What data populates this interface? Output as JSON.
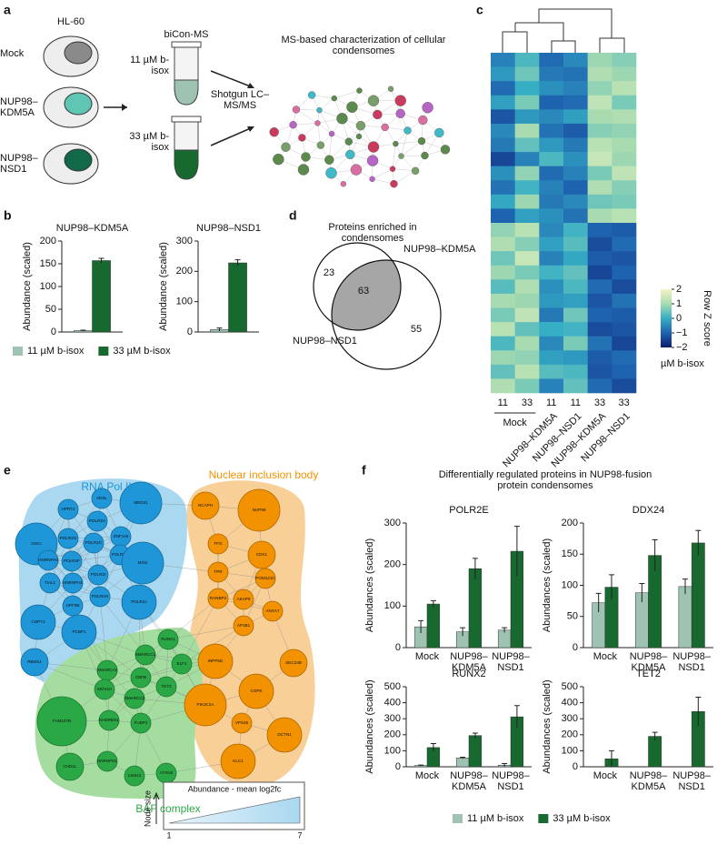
{
  "panel_labels": [
    "a",
    "b",
    "c",
    "d",
    "e",
    "f"
  ],
  "schematic": {
    "cell_line": "HL-60",
    "conditions": [
      "Mock",
      "NUP98–KDM5A",
      "NUP98–NSD1"
    ],
    "method": "biCon-MS",
    "concentrations": [
      "11 µM b-isox",
      "33 µM b-isox"
    ],
    "analysis": "Shotgun LC–MS/MS",
    "result": "MS-based characterization of cellular condensomes"
  },
  "chart_data": [
    {
      "type": "bar",
      "title": "NUP98–KDM5A",
      "y_label": "Abundance (scaled)",
      "categories": [
        null
      ],
      "series": [
        {
          "name": "11 µM b-isox",
          "color": "#9fc3b3",
          "values": [
            3
          ],
          "errors": [
            1
          ]
        },
        {
          "name": "33 µM b-isox",
          "color": "#17692f",
          "values": [
            157
          ],
          "errors": [
            5
          ]
        }
      ],
      "ylim": [
        0,
        200
      ],
      "yticks": [
        0,
        50,
        100,
        150,
        200
      ],
      "legend": "bottom"
    },
    {
      "type": "bar",
      "title": "NUP98–NSD1",
      "y_label": "Abundance (scaled)",
      "categories": [
        null
      ],
      "series": [
        {
          "color": "#9fc3b3",
          "values": [
            8
          ],
          "errors": [
            5
          ]
        },
        {
          "color": "#17692f",
          "values": [
            228
          ],
          "errors": [
            10
          ]
        }
      ],
      "ylim": [
        0,
        300
      ],
      "yticks": [
        0,
        100,
        200,
        300
      ]
    },
    {
      "type": "heatmap",
      "x_labels": [
        "11",
        "33",
        "11",
        "11",
        "33",
        "33"
      ],
      "x_label": "µM b-isox",
      "groups": [
        "Mock",
        "NUP98–KDM5A",
        "NUP98–NSD1",
        "NUP98–KDM5A",
        "NUP98–NSD1"
      ],
      "colorbar_label": "Row Z score",
      "zlim": [
        -2,
        2
      ],
      "colorbar_ticks": [
        2,
        1,
        0,
        {
          "value": -1,
          "label": "−1"
        },
        {
          "value": -2,
          "label": "−2"
        }
      ],
      "colorscale": [
        "#0d1b6e",
        "#1e63b0",
        "#36aec4",
        "#a8dcb0",
        "#f6f4c4"
      ],
      "values": [
        [
          -0.6,
          0.2,
          -0.9,
          -0.5,
          0.9,
          0.7
        ],
        [
          -0.3,
          0.5,
          -0.7,
          -0.8,
          1.1,
          0.9
        ],
        [
          -0.9,
          0.0,
          -0.4,
          -0.6,
          0.8,
          1.2
        ],
        [
          -0.2,
          0.6,
          -1.0,
          -0.9,
          1.3,
          0.6
        ],
        [
          -1.2,
          -0.3,
          -0.5,
          -0.2,
          1.0,
          1.1
        ],
        [
          -0.5,
          1.0,
          -0.8,
          -1.1,
          0.7,
          0.8
        ],
        [
          -0.7,
          0.4,
          -0.3,
          -0.7,
          1.2,
          1.0
        ],
        [
          -1.4,
          -0.6,
          0.2,
          -0.4,
          1.4,
          0.9
        ],
        [
          -0.4,
          0.8,
          -0.9,
          -0.6,
          0.6,
          1.3
        ],
        [
          -0.8,
          0.1,
          -0.6,
          -1.0,
          1.1,
          0.7
        ],
        [
          -0.1,
          0.9,
          -0.7,
          -0.5,
          0.5,
          0.6
        ],
        [
          -1.0,
          -0.2,
          -0.4,
          -0.8,
          1.0,
          1.2
        ],
        [
          0.8,
          1.2,
          -0.5,
          0.1,
          -1.0,
          -1.1
        ],
        [
          1.1,
          0.7,
          -0.2,
          0.3,
          -1.3,
          -0.9
        ],
        [
          0.5,
          1.4,
          -0.6,
          -0.1,
          -1.1,
          -1.2
        ],
        [
          0.9,
          0.6,
          0.1,
          0.4,
          -1.4,
          -1.0
        ],
        [
          0.3,
          1.1,
          -0.4,
          0.2,
          -0.9,
          -1.3
        ],
        [
          1.0,
          0.9,
          -0.3,
          -0.2,
          -1.2,
          -0.8
        ],
        [
          0.6,
          1.3,
          -0.7,
          0.5,
          -1.0,
          -1.1
        ],
        [
          1.2,
          0.4,
          0.0,
          0.1,
          -1.3,
          -1.2
        ],
        [
          0.2,
          1.0,
          -0.5,
          0.6,
          -0.8,
          -1.4
        ],
        [
          0.9,
          0.8,
          -0.2,
          -0.3,
          -1.1,
          -0.9
        ],
        [
          0.4,
          1.2,
          0.3,
          0.2,
          -1.2,
          -1.0
        ],
        [
          1.1,
          0.6,
          -0.6,
          0.4,
          -0.9,
          -1.3
        ]
      ]
    },
    {
      "type": "bar",
      "title": "POLR2E",
      "y_label": "Abundances (scaled)",
      "categories": [
        "Mock",
        "NUP98–KDM5A",
        "NUP98–NSD1"
      ],
      "series": [
        {
          "name": "11 µM b-isox",
          "color": "#9fc3b3",
          "values": [
            50,
            38,
            42
          ],
          "errors": [
            15,
            10,
            6
          ]
        },
        {
          "name": "33 µM b-isox",
          "color": "#17692f",
          "values": [
            105,
            190,
            232
          ],
          "errors": [
            8,
            25,
            60
          ]
        }
      ],
      "ylim": [
        0,
        300
      ],
      "yticks": [
        0,
        100,
        200,
        300
      ],
      "legend": "bottom"
    },
    {
      "type": "bar",
      "title": "DDX24",
      "y_label": "Abundances (scaled)",
      "categories": [
        "Mock",
        "NUP98–KDM5A",
        "NUP98–NSD1"
      ],
      "series": [
        {
          "color": "#9fc3b3",
          "values": [
            72,
            88,
            98
          ],
          "errors": [
            15,
            15,
            12
          ]
        },
        {
          "color": "#17692f",
          "values": [
            97,
            148,
            168
          ],
          "errors": [
            20,
            25,
            20
          ]
        }
      ],
      "ylim": [
        0,
        200
      ],
      "yticks": [
        0,
        50,
        100,
        150,
        200
      ]
    },
    {
      "type": "bar",
      "title": "RUNX2",
      "y_label": "Abundances (scaled)",
      "categories": [
        "Mock",
        "NUP98–KDM5A",
        "NUP98–NSD1"
      ],
      "series": [
        {
          "color": "#9fc3b3",
          "values": [
            8,
            55,
            10
          ],
          "errors": [
            3,
            5,
            10
          ]
        },
        {
          "color": "#17692f",
          "values": [
            120,
            195,
            312
          ],
          "errors": [
            25,
            15,
            70
          ]
        }
      ],
      "ylim": [
        0,
        500
      ],
      "yticks": [
        0,
        100,
        200,
        300,
        400,
        500
      ]
    },
    {
      "type": "bar",
      "title": "TET2",
      "y_label": "Abundances (scaled)",
      "categories": [
        "Mock",
        "NUP98–KDM5A",
        "NUP98–NSD1"
      ],
      "series": [
        {
          "color": "#9fc3b3",
          "values": [
            0,
            0,
            0
          ],
          "errors": [
            0,
            0,
            0
          ]
        },
        {
          "color": "#17692f",
          "values": [
            50,
            190,
            345
          ],
          "errors": [
            50,
            25,
            90
          ]
        }
      ],
      "ylim": [
        0,
        500
      ],
      "yticks": [
        0,
        100,
        200,
        300,
        400,
        500
      ]
    }
  ],
  "venn": {
    "title": "Proteins enriched in condensomes",
    "sets": [
      "NUP98–KDM5A",
      "NUP98–NSD1"
    ],
    "only_first": 23,
    "both": 63,
    "only_second": 55
  },
  "network": {
    "groups": [
      {
        "name": "RNA Pol II",
        "color": "#1e96d8",
        "nodes": [
          {
            "label": "HPRT1",
            "size": 2
          },
          {
            "label": "ADSL",
            "size": 2
          },
          {
            "label": "MED31",
            "size": 5
          },
          {
            "label": "POLR2A",
            "size": 2
          },
          {
            "label": "ZNF146",
            "size": 2
          },
          {
            "label": "OSCI",
            "size": 5
          },
          {
            "label": "POLR2G",
            "size": 2
          },
          {
            "label": "POLR2C",
            "size": 2
          },
          {
            "label": "POLR2D",
            "size": 2
          },
          {
            "label": "MSI2",
            "size": 5
          },
          {
            "label": "HNRNPA0",
            "size": 2
          },
          {
            "label": "POLR2F",
            "size": 2
          },
          {
            "label": "HNRNPH1",
            "size": 2
          },
          {
            "label": "TIAL1",
            "size": 2
          },
          {
            "label": "POLR2I",
            "size": 2
          },
          {
            "label": "POLR2H",
            "size": 2
          },
          {
            "label": "UPF3B",
            "size": 2
          },
          {
            "label": "POLR2J",
            "size": 4
          },
          {
            "label": "CNPY2",
            "size": 4
          },
          {
            "label": "PCBP1",
            "size": 4
          },
          {
            "label": "RBMS1",
            "size": 3
          }
        ]
      },
      {
        "name": "Nuclear inclusion body",
        "color": "#f39200",
        "nodes": [
          {
            "label": "NCAPH",
            "size": 3
          },
          {
            "label": "NUP98",
            "size": 5
          },
          {
            "label": "TFG",
            "size": 2
          },
          {
            "label": "CDK1",
            "size": 3
          },
          {
            "label": "TPR",
            "size": 2
          },
          {
            "label": "POM121C",
            "size": 2
          },
          {
            "label": "RANBP2",
            "size": 2
          },
          {
            "label": "AKAP9",
            "size": 2
          },
          {
            "label": "ANXA7",
            "size": 2
          },
          {
            "label": "AP1B1",
            "size": 2
          },
          {
            "label": "INPP5D",
            "size": 4
          },
          {
            "label": "SEC23B",
            "size": 3
          },
          {
            "label": "COPE",
            "size": 4
          },
          {
            "label": "PIK3C2A",
            "size": 5
          },
          {
            "label": "VPS35",
            "size": 2
          },
          {
            "label": "DCTN1",
            "size": 4
          },
          {
            "label": "KLC1",
            "size": 4
          }
        ]
      },
      {
        "name": "BAF complex",
        "color": "#2aa845",
        "nodes": [
          {
            "label": "RUNX1",
            "size": 2
          },
          {
            "label": "SMARCC1",
            "size": 2
          },
          {
            "label": "ELF1",
            "size": 2
          },
          {
            "label": "SMARCA2",
            "size": 2
          },
          {
            "label": "CBFB",
            "size": 2
          },
          {
            "label": "TET2",
            "size": 2
          },
          {
            "label": "MOV10",
            "size": 2
          },
          {
            "label": "SMARCC2",
            "size": 2
          },
          {
            "label": "FAM107B",
            "size": 6
          },
          {
            "label": "KHDRBS1",
            "size": 2
          },
          {
            "label": "FUBP1",
            "size": 2
          },
          {
            "label": "CHD1L",
            "size": 3
          },
          {
            "label": "HNRNPDL",
            "size": 2
          },
          {
            "label": "LSM12",
            "size": 2
          },
          {
            "label": "ATXN2",
            "size": 2
          }
        ]
      }
    ],
    "size_legend": {
      "title": "Abundance - mean log2fc",
      "axis_label": "Node size",
      "range": [
        1,
        7
      ]
    }
  },
  "figure_f_title": "Differentially regulated proteins in NUP98-fusion protein condensomes"
}
